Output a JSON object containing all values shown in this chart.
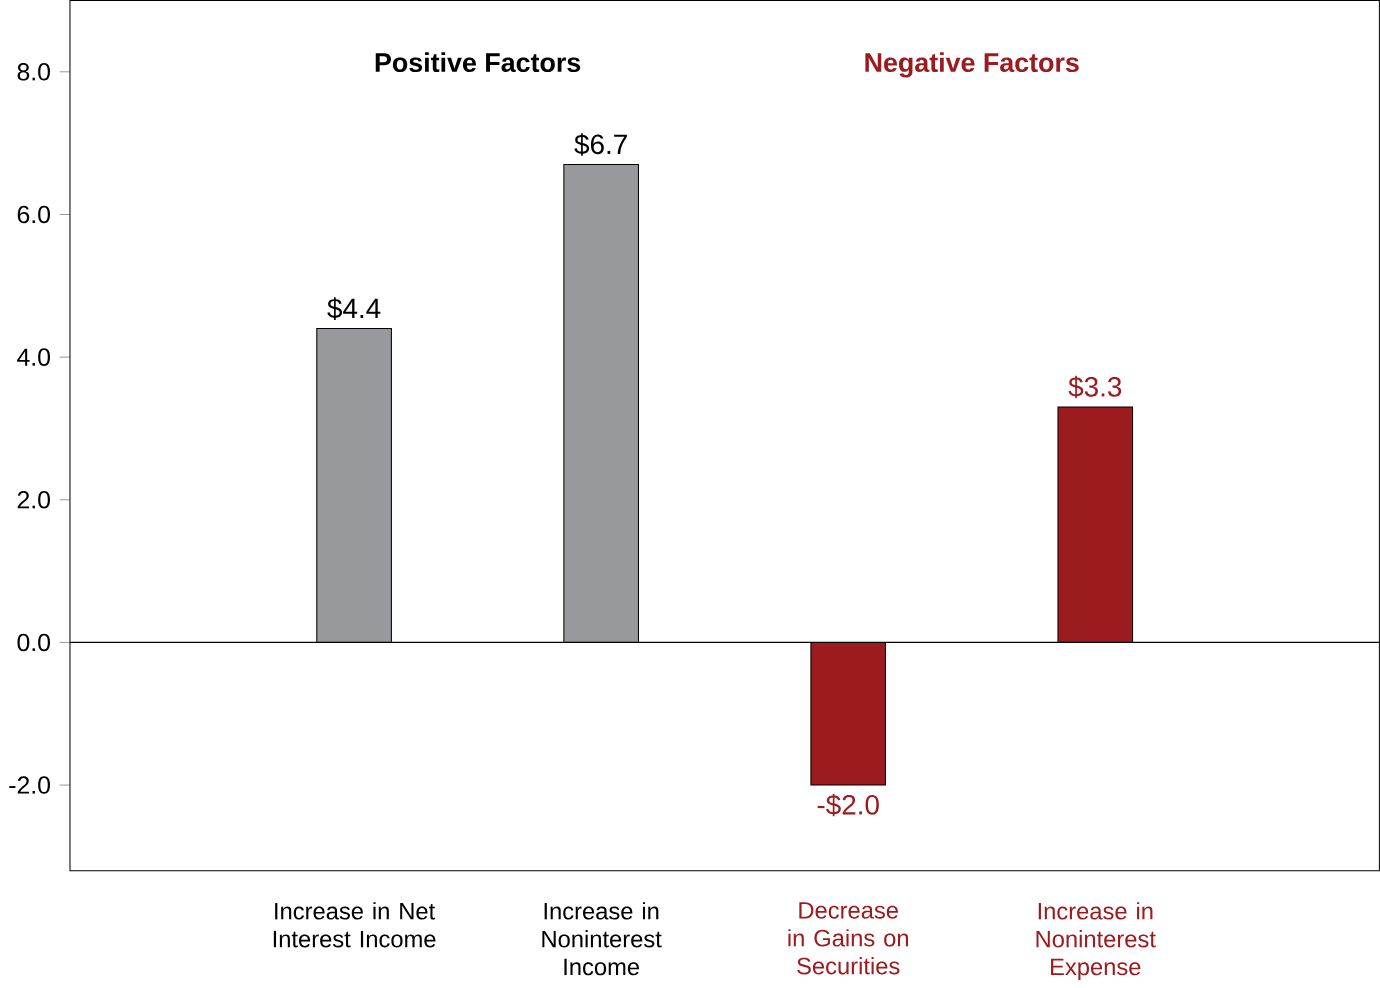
{
  "chart_data": {
    "type": "bar",
    "categories": [
      "Increase in Net Interest Income",
      "Increase in Noninterest Income",
      "Decrease in Gains on Securities",
      "Increase in Noninterest Expense"
    ],
    "values": [
      4.4,
      6.7,
      -2.0,
      3.3
    ],
    "value_labels": [
      "$4.4",
      "$6.7",
      "-$2.0",
      "$3.3"
    ],
    "colors": [
      "#98999d",
      "#98999d",
      "#9b1b1f",
      "#9b1b1f"
    ],
    "ylim": [
      -3.2,
      9.0
    ],
    "yticks": [
      {
        "value": -2,
        "label": "-2.0"
      },
      {
        "value": 0,
        "label": "0.0"
      },
      {
        "value": 2,
        "label": "2.0"
      },
      {
        "value": 4,
        "label": "4.0"
      },
      {
        "value": 6,
        "label": "6.0"
      },
      {
        "value": 8,
        "label": "8.0"
      }
    ],
    "annotations": [
      "Positive Factors",
      "Negative Factors"
    ]
  }
}
